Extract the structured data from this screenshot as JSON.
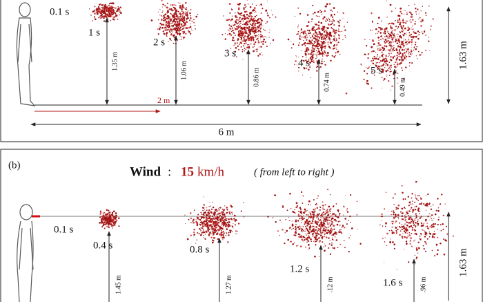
{
  "panel_a": {
    "time_start": "0.1 s",
    "times": [
      "1 s",
      "2 s",
      "3 s",
      "4 s",
      "5 s"
    ],
    "heights": [
      "1.35 m",
      "1.06 m",
      "0.86 m",
      "0.74 m",
      "0.49 m"
    ],
    "distance_short": "2 m",
    "distance_total": "6 m",
    "height": "1.63 m"
  },
  "panel_b": {
    "label": "(b)",
    "wind_word": "Wind",
    "wind_separator": ":",
    "wind_speed": "15",
    "wind_unit": "km/h",
    "wind_note": "( from left to right )",
    "time_start": "0.1 s",
    "times": [
      "0.4 s",
      "0.8 s",
      "1.2 s",
      "1.6 s"
    ],
    "heights": [
      "1.45 m",
      "1.27 m",
      ".12 m",
      ".96 m"
    ],
    "height": "1.63 m"
  }
}
